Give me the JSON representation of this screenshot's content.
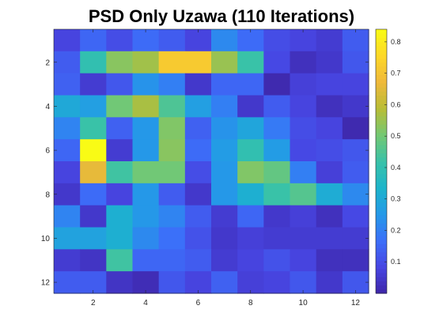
{
  "chart_data": {
    "type": "heatmap",
    "title": "PSD Only Uzawa (110 Iterations)",
    "xlabel": "",
    "ylabel": "",
    "x_ticks": [
      2,
      4,
      6,
      8,
      10,
      12
    ],
    "y_ticks": [
      2,
      4,
      6,
      8,
      10,
      12
    ],
    "x_range": [
      0.5,
      12.5
    ],
    "y_range": [
      0.5,
      12.5
    ],
    "y_direction": "reversed",
    "colormap": "parula",
    "clim": [
      0.0,
      0.84
    ],
    "colorbar": {
      "ticks": [
        0.1,
        0.2,
        0.3,
        0.4,
        0.5,
        0.6,
        0.7,
        0.8
      ],
      "tick_labels": [
        "0.1",
        "0.2",
        "0.3",
        "0.4",
        "0.5",
        "0.6",
        "0.7",
        "0.8"
      ],
      "location": "right"
    },
    "values": [
      [
        0.08,
        0.15,
        0.1,
        0.16,
        0.13,
        0.08,
        0.22,
        0.16,
        0.1,
        0.08,
        0.06,
        0.13
      ],
      [
        0.13,
        0.4,
        0.53,
        0.56,
        0.72,
        0.72,
        0.55,
        0.42,
        0.09,
        0.03,
        0.05,
        0.12
      ],
      [
        0.14,
        0.06,
        0.12,
        0.24,
        0.2,
        0.05,
        0.15,
        0.15,
        0.01,
        0.07,
        0.08,
        0.08
      ],
      [
        0.3,
        0.27,
        0.5,
        0.57,
        0.45,
        0.27,
        0.2,
        0.05,
        0.13,
        0.08,
        0.03,
        0.05
      ],
      [
        0.21,
        0.42,
        0.14,
        0.25,
        0.52,
        0.14,
        0.24,
        0.29,
        0.19,
        0.1,
        0.08,
        0.01
      ],
      [
        0.15,
        0.84,
        0.06,
        0.25,
        0.53,
        0.16,
        0.26,
        0.4,
        0.26,
        0.09,
        0.1,
        0.12
      ],
      [
        0.08,
        0.66,
        0.43,
        0.5,
        0.5,
        0.1,
        0.25,
        0.52,
        0.48,
        0.2,
        0.07,
        0.13
      ],
      [
        0.05,
        0.16,
        0.08,
        0.25,
        0.13,
        0.05,
        0.25,
        0.32,
        0.42,
        0.46,
        0.31,
        0.22
      ],
      [
        0.21,
        0.05,
        0.32,
        0.25,
        0.21,
        0.13,
        0.06,
        0.15,
        0.05,
        0.07,
        0.03,
        0.09
      ],
      [
        0.28,
        0.28,
        0.32,
        0.22,
        0.17,
        0.11,
        0.05,
        0.07,
        0.06,
        0.06,
        0.06,
        0.06
      ],
      [
        0.06,
        0.04,
        0.43,
        0.15,
        0.15,
        0.13,
        0.06,
        0.08,
        0.11,
        0.08,
        0.03,
        0.03
      ],
      [
        0.13,
        0.13,
        0.04,
        0.02,
        0.12,
        0.08,
        0.14,
        0.07,
        0.08,
        0.12,
        0.05,
        0.12
      ]
    ]
  }
}
